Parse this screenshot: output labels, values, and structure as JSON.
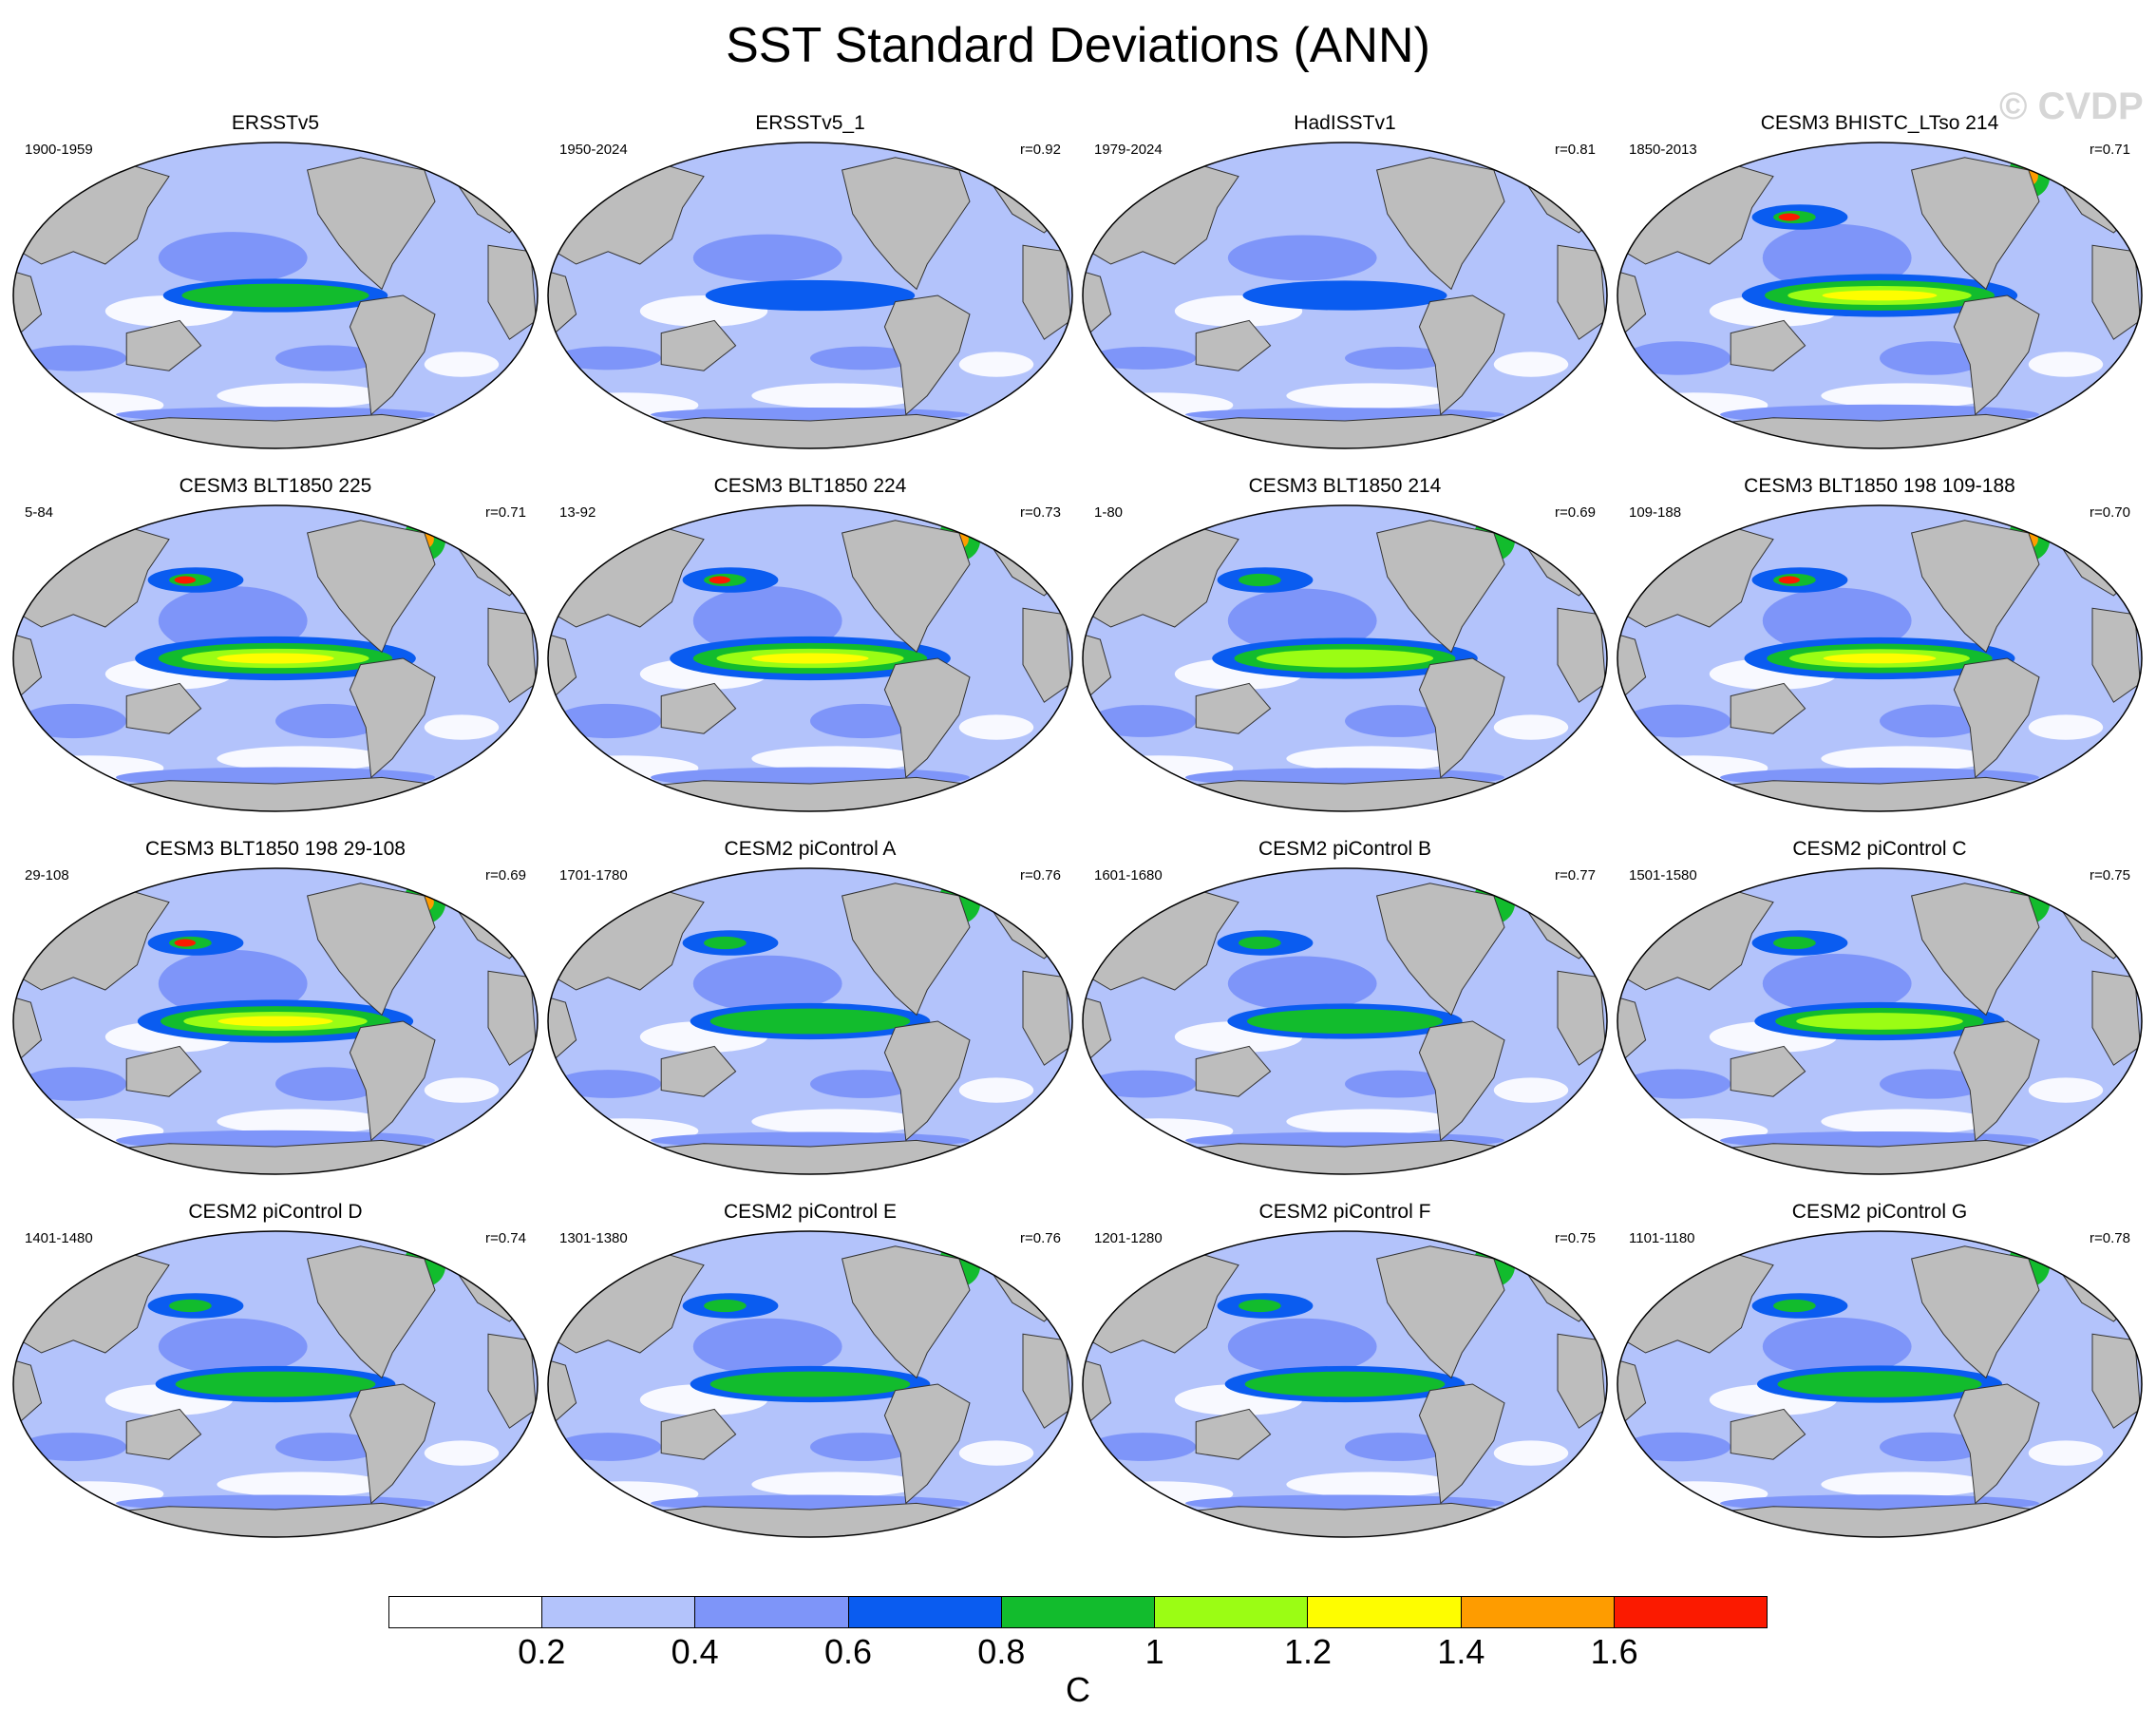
{
  "title": "SST Standard Deviations (ANN)",
  "watermark": "© CVDP",
  "panels": [
    {
      "name": "ERSSTv5",
      "period": "1900-1959",
      "r": "",
      "intensity": 0.45
    },
    {
      "name": "ERSSTv5_1",
      "period": "1950-2024",
      "r": "r=0.92",
      "intensity": 0.3
    },
    {
      "name": "HadISSTv1",
      "period": "1979-2024",
      "r": "r=0.81",
      "intensity": 0.25
    },
    {
      "name": "CESM3 BHISTC_LTso 214",
      "period": "1850-2013",
      "r": "r=0.71",
      "intensity": 0.95
    },
    {
      "name": "CESM3 BLT1850 225",
      "period": "5-84",
      "r": "r=0.71",
      "intensity": 1.0
    },
    {
      "name": "CESM3 BLT1850 224",
      "period": "13-92",
      "r": "r=0.73",
      "intensity": 1.0
    },
    {
      "name": "CESM3 BLT1850 214",
      "period": "1-80",
      "r": "r=0.69",
      "intensity": 0.85
    },
    {
      "name": "CESM3 BLT1850 198 109-188",
      "period": "109-188",
      "r": "r=0.70",
      "intensity": 0.9
    },
    {
      "name": "CESM3 BLT1850 198 29-108",
      "period": "29-108",
      "r": "r=0.69",
      "intensity": 0.95
    },
    {
      "name": "CESM2 piControl A",
      "period": "1701-1780",
      "r": "r=0.76",
      "intensity": 0.6
    },
    {
      "name": "CESM2 piControl B",
      "period": "1601-1680",
      "r": "r=0.77",
      "intensity": 0.55
    },
    {
      "name": "CESM2 piControl C",
      "period": "1501-1580",
      "r": "r=0.75",
      "intensity": 0.7
    },
    {
      "name": "CESM2 piControl D",
      "period": "1401-1480",
      "r": "r=0.74",
      "intensity": 0.6
    },
    {
      "name": "CESM2 piControl E",
      "period": "1301-1380",
      "r": "r=0.76",
      "intensity": 0.6
    },
    {
      "name": "CESM2 piControl F",
      "period": "1201-1280",
      "r": "r=0.75",
      "intensity": 0.6
    },
    {
      "name": "CESM2 piControl G",
      "period": "1101-1180",
      "r": "r=0.78",
      "intensity": 0.65
    }
  ],
  "colorbar": {
    "colors": [
      "#ffffff",
      "#b3c3fb",
      "#7e95f9",
      "#0a5cf0",
      "#12bc2d",
      "#9bfd14",
      "#fefd00",
      "#fe9c00",
      "#fb1a00"
    ],
    "labels": [
      "0.2",
      "0.4",
      "0.6",
      "0.8",
      "1",
      "1.2",
      "1.4",
      "1.6"
    ],
    "units": "C"
  },
  "land_color": "#bdbdbd"
}
